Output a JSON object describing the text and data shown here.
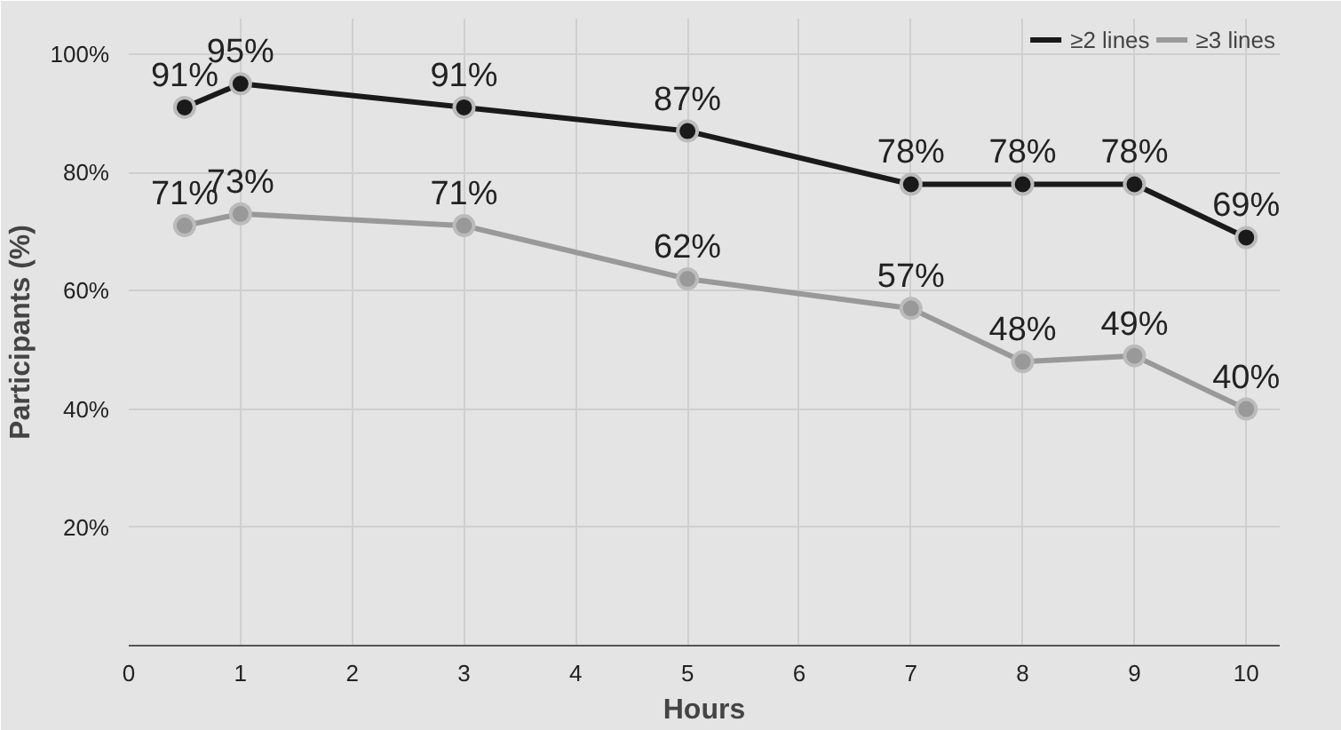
{
  "chart_data": {
    "type": "line",
    "xlabel": "Hours",
    "ylabel": "Participants (%)",
    "x": [
      0.5,
      1,
      3,
      5,
      7,
      8,
      9,
      10
    ],
    "series": [
      {
        "name": "≥2 lines",
        "color": "#1a1a1a",
        "values": [
          91,
          95,
          91,
          87,
          78,
          78,
          78,
          69
        ],
        "value_labels": [
          "91%",
          "95%",
          "91%",
          "87%",
          "78%",
          "78%",
          "78%",
          "69%"
        ]
      },
      {
        "name": "≥3 lines",
        "color": "#999999",
        "values": [
          71,
          73,
          71,
          62,
          57,
          48,
          49,
          40
        ],
        "value_labels": [
          "71%",
          "73%",
          "71%",
          "62%",
          "57%",
          "48%",
          "49%",
          "40%"
        ]
      }
    ],
    "xlim": [
      0,
      10.3
    ],
    "xticks": [
      0,
      1,
      2,
      3,
      4,
      5,
      6,
      7,
      8,
      9,
      10
    ],
    "ylim": [
      0,
      106
    ],
    "yticks": [
      {
        "value": 20,
        "label": "20%"
      },
      {
        "value": 40,
        "label": "40%"
      },
      {
        "value": 60,
        "label": "60%"
      },
      {
        "value": 80,
        "label": "80%"
      },
      {
        "value": 100,
        "label": "100%"
      }
    ],
    "grid": true,
    "legend": "top right",
    "marker": "circle",
    "line_style": "solid"
  }
}
